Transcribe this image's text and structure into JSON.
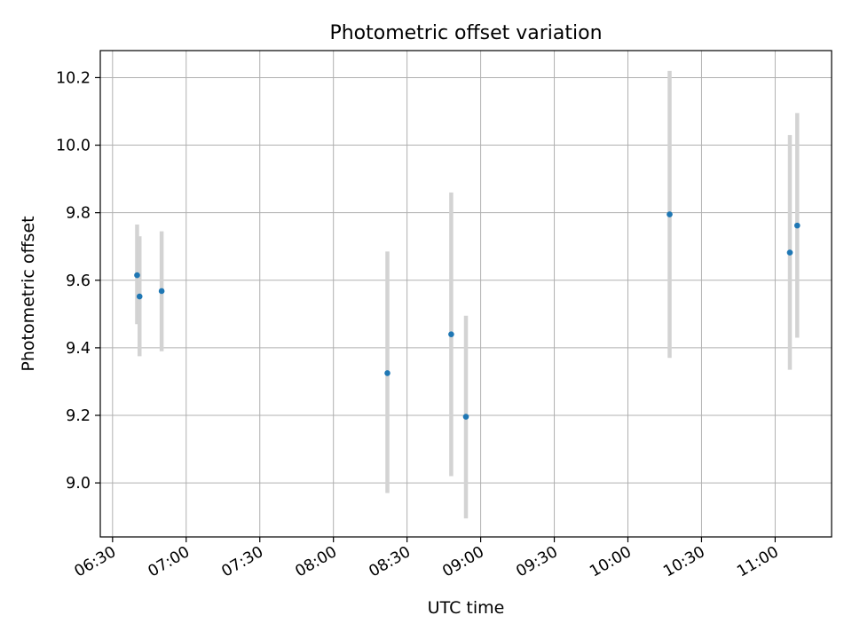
{
  "chart_data": {
    "type": "scatter",
    "title": "Photometric offset variation",
    "xlabel": "UTC time",
    "ylabel": "Photometric offset",
    "x_axis": {
      "type": "time",
      "range": [
        "06:25",
        "11:23"
      ],
      "ticks": [
        "06:30",
        "07:00",
        "07:30",
        "08:00",
        "08:30",
        "09:00",
        "09:30",
        "10:00",
        "10:30",
        "11:00"
      ]
    },
    "y_axis": {
      "range": [
        8.84,
        10.28
      ],
      "ticks": [
        "9.0",
        "9.2",
        "9.4",
        "9.6",
        "9.8",
        "10.0",
        "10.2"
      ]
    },
    "grid": true,
    "legend": "none",
    "marker_color": "#1f77b4",
    "errorbar_color": "#d3d3d3",
    "points": [
      {
        "x": "06:40",
        "y": 9.615,
        "yerr_low": 9.47,
        "yerr_high": 9.765
      },
      {
        "x": "06:41",
        "y": 9.552,
        "yerr_low": 9.375,
        "yerr_high": 9.73
      },
      {
        "x": "06:50",
        "y": 9.568,
        "yerr_low": 9.39,
        "yerr_high": 9.745
      },
      {
        "x": "08:22",
        "y": 9.325,
        "yerr_low": 8.97,
        "yerr_high": 9.685
      },
      {
        "x": "08:48",
        "y": 9.44,
        "yerr_low": 9.02,
        "yerr_high": 9.86
      },
      {
        "x": "08:54",
        "y": 9.196,
        "yerr_low": 8.895,
        "yerr_high": 9.495
      },
      {
        "x": "10:17",
        "y": 9.795,
        "yerr_low": 9.37,
        "yerr_high": 10.22
      },
      {
        "x": "11:06",
        "y": 9.682,
        "yerr_low": 9.335,
        "yerr_high": 10.03
      },
      {
        "x": "11:09",
        "y": 9.762,
        "yerr_low": 9.43,
        "yerr_high": 10.095
      }
    ]
  }
}
